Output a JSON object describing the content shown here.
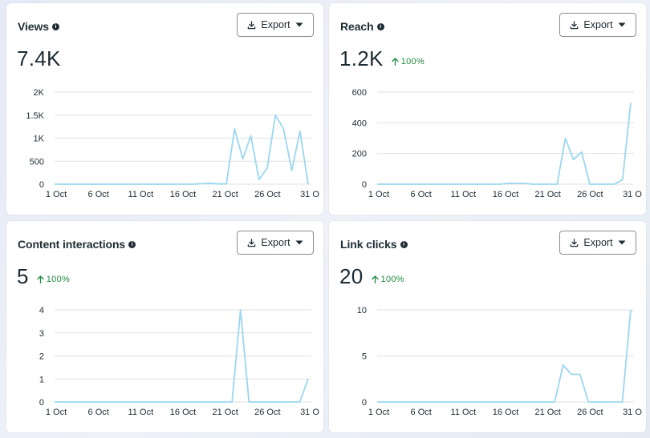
{
  "cards": [
    {
      "title": "Views",
      "export_label": "Export",
      "value": "7.4K",
      "delta": "",
      "chart_data": {
        "type": "line",
        "x": [
          1,
          2,
          3,
          4,
          5,
          6,
          7,
          8,
          9,
          10,
          11,
          12,
          13,
          14,
          15,
          16,
          17,
          18,
          19,
          20,
          21,
          22,
          23,
          24,
          25,
          26,
          27,
          28,
          29,
          30,
          31,
          32
        ],
        "values": [
          0,
          0,
          0,
          0,
          0,
          0,
          0,
          0,
          0,
          0,
          0,
          0,
          0,
          0,
          0,
          0,
          0,
          0,
          10,
          20,
          5,
          5,
          1200,
          550,
          1050,
          100,
          350,
          1500,
          1200,
          300,
          1150,
          0
        ],
        "series_count": 31,
        "yticks": [
          0,
          500,
          1000,
          1500,
          2000
        ],
        "ytick_labels": [
          "0",
          "500",
          "1K",
          "1.5K",
          "2K"
        ],
        "ylim": [
          0,
          2000
        ],
        "xtick_labels": [
          "1 Oct",
          "6 Oct",
          "11 Oct",
          "16 Oct",
          "21 Oct",
          "26 Oct",
          "31 O"
        ]
      }
    },
    {
      "title": "Reach",
      "export_label": "Export",
      "value": "1.2K",
      "delta": "100%",
      "chart_data": {
        "type": "line",
        "values": [
          0,
          0,
          0,
          0,
          0,
          0,
          0,
          0,
          0,
          0,
          0,
          0,
          0,
          0,
          0,
          0,
          5,
          5,
          5,
          0,
          0,
          0,
          0,
          300,
          160,
          210,
          0,
          0,
          0,
          0,
          30,
          530
        ],
        "yticks": [
          0,
          200,
          400,
          600
        ],
        "ytick_labels": [
          "0",
          "200",
          "400",
          "600"
        ],
        "ylim": [
          0,
          600
        ],
        "xtick_labels": [
          "1 Oct",
          "6 Oct",
          "11 Oct",
          "16 Oct",
          "21 Oct",
          "26 Oct",
          "31 O"
        ]
      }
    },
    {
      "title": "Content interactions",
      "export_label": "Export",
      "value": "5",
      "delta": "100%",
      "chart_data": {
        "type": "line",
        "values": [
          0,
          0,
          0,
          0,
          0,
          0,
          0,
          0,
          0,
          0,
          0,
          0,
          0,
          0,
          0,
          0,
          0,
          0,
          0,
          0,
          0,
          0,
          4,
          0,
          0,
          0,
          0,
          0,
          0,
          0,
          1
        ],
        "yticks": [
          0,
          1,
          2,
          3,
          4
        ],
        "ytick_labels": [
          "0",
          "1",
          "2",
          "3",
          "4"
        ],
        "ylim": [
          0,
          4
        ],
        "xtick_labels": [
          "1 Oct",
          "6 Oct",
          "11 Oct",
          "16 Oct",
          "21 Oct",
          "26 Oct",
          "31 O"
        ]
      }
    },
    {
      "title": "Link clicks",
      "export_label": "Export",
      "value": "20",
      "delta": "100%",
      "chart_data": {
        "type": "line",
        "values": [
          0,
          0,
          0,
          0,
          0,
          0,
          0,
          0,
          0,
          0,
          0,
          0,
          0,
          0,
          0,
          0,
          0,
          0,
          0,
          0,
          0,
          0,
          4,
          3,
          3,
          0,
          0,
          0,
          0,
          0,
          10
        ],
        "yticks": [
          0,
          5,
          10
        ],
        "ytick_labels": [
          "0",
          "5",
          "10"
        ],
        "ylim": [
          0,
          10
        ],
        "xtick_labels": [
          "1 Oct",
          "6 Oct",
          "11 Oct",
          "16 Oct",
          "21 Oct",
          "26 Oct",
          "31 O"
        ]
      }
    }
  ],
  "colors": {
    "line": "#9ad7f0",
    "grid": "#dfe1e5",
    "delta": "#1e8a3e"
  },
  "icons": {
    "info": "info-icon",
    "export": "download-icon",
    "caret": "caret-down-icon",
    "delta": "arrow-up-icon"
  }
}
